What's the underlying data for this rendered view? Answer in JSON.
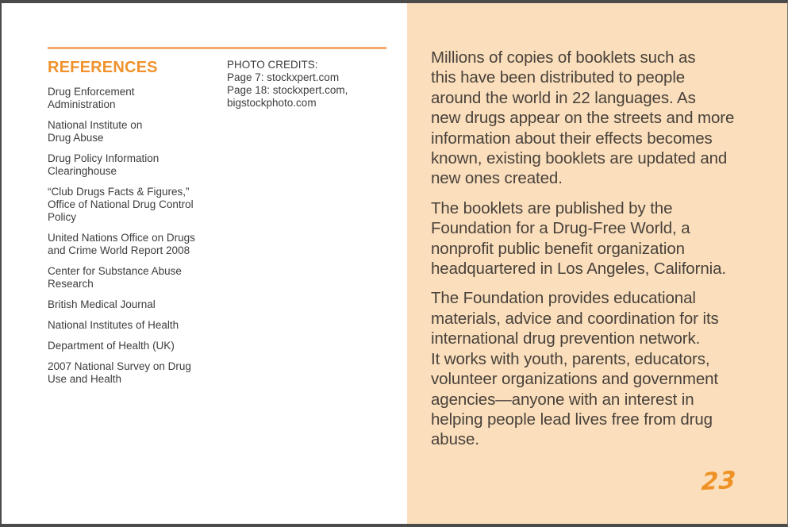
{
  "document": {
    "left_page": {
      "heading": "REFERENCES",
      "references": [
        "Drug Enforcement\nAdministration",
        "National Institute on\nDrug Abuse",
        "Drug Policy Information\nClearinghouse",
        "“Club Drugs Facts & Figures,”\nOffice of National Drug Control\nPolicy",
        "United Nations Office on Drugs\nand Crime World Report 2008",
        "Center for Substance Abuse\nResearch",
        "British Medical Journal",
        "National Institutes of Health",
        "Department of Health (UK)",
        "2007 National Survey on Drug\nUse and Health"
      ],
      "photo_credits": "PHOTO CREDITS:\nPage 7: stockxpert.com\nPage 18: stockxpert.com,\nbigstockphoto.com"
    },
    "right_page": {
      "paragraphs": [
        "Millions of copies of booklets such as\nthis have been distributed to people\naround the world in 22 languages. As\nnew drugs appear on the streets and more\ninformation about their effects becomes\nknown, existing booklets are updated and\nnew ones created.",
        "The booklets are published by the\nFoundation for a Drug-Free World, a\nnonprofit public benefit organization\nheadquartered in Los Angeles, California.",
        "The Foundation provides educational\nmaterials, advice and coordination for its\ninternational drug prevention network.\nIt works with youth, parents, educators,\nvolunteer organizations and government\nagencies—anyone with an interest in\nhelping people lead lives free from drug\nabuse."
      ],
      "page_number": "23"
    },
    "colors": {
      "accent_orange": "#f0922d",
      "rule_orange": "#f2aa6e",
      "page_number_orange": "#ef9226",
      "right_page_background": "#fbdfbc",
      "left_text": "#3d3d3d",
      "right_text": "#48413b"
    }
  }
}
